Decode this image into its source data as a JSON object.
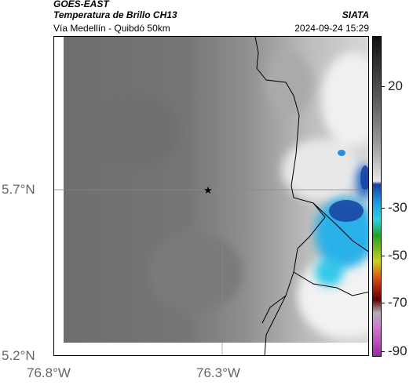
{
  "header": {
    "title_line1": "GOES-EAST",
    "title_line2": "Temperatura de Brillo CH13",
    "subtitle": "Vía Medellín - Quibdó 50km",
    "agency": "SIATA",
    "datetime": "2024-09-24 15:29"
  },
  "map": {
    "lat_labels": [
      "5.7°N",
      "5.2°N"
    ],
    "lon_labels": [
      "76.8°W",
      "76.3°W"
    ],
    "marker_icon": "star-icon"
  },
  "colorbar": {
    "tick_labels": [
      "20",
      "-30",
      "-50",
      "-70",
      "-90"
    ],
    "colors": [
      "#111111",
      "#555555",
      "#999999",
      "#dddddd",
      "#1a3fa0",
      "#1aa0e0",
      "#30d0e0",
      "#20a020",
      "#d0d020",
      "#d04010",
      "#600000",
      "#909090",
      "#d080d0",
      "#a020a0"
    ]
  }
}
